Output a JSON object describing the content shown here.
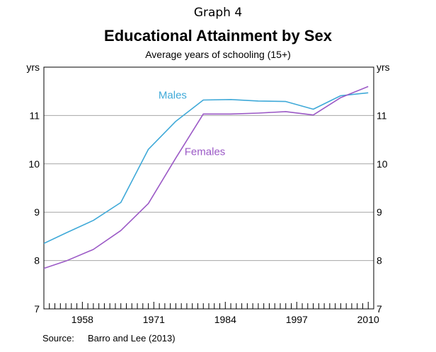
{
  "header": {
    "graph_label": "Graph 4",
    "title": "Educational Attainment by Sex",
    "subtitle": "Average years of schooling (15+)"
  },
  "source": {
    "label": "Source:",
    "text": "Barro and Lee (2013)"
  },
  "chart_data": {
    "type": "line",
    "title": "Educational Attainment by Sex",
    "subtitle": "Average years of schooling (15+)",
    "y_unit_left": "yrs",
    "y_unit_right": "yrs",
    "xlim": [
      1951,
      2011
    ],
    "ylim": [
      7,
      12
    ],
    "y_ticks": [
      7,
      8,
      9,
      10,
      11
    ],
    "x_tick_labels": [
      1958,
      1971,
      1984,
      1997,
      2010
    ],
    "grid": true,
    "series": [
      {
        "name": "Males",
        "color": "#3fa9d8",
        "x": [
          1950,
          1955,
          1960,
          1965,
          1970,
          1975,
          1980,
          1985,
          1990,
          1995,
          2000,
          2005,
          2010
        ],
        "values": [
          8.3,
          8.57,
          8.83,
          9.2,
          10.3,
          10.88,
          11.32,
          11.33,
          11.3,
          11.29,
          11.13,
          11.41,
          11.47
        ]
      },
      {
        "name": "Females",
        "color": "#9b59c6",
        "x": [
          1950,
          1955,
          1960,
          1965,
          1970,
          1975,
          1980,
          1985,
          1990,
          1995,
          2000,
          2005,
          2010
        ],
        "values": [
          7.8,
          7.99,
          8.23,
          8.62,
          9.18,
          10.12,
          11.03,
          11.03,
          11.05,
          11.08,
          11.01,
          11.37,
          11.6
        ]
      }
    ]
  }
}
